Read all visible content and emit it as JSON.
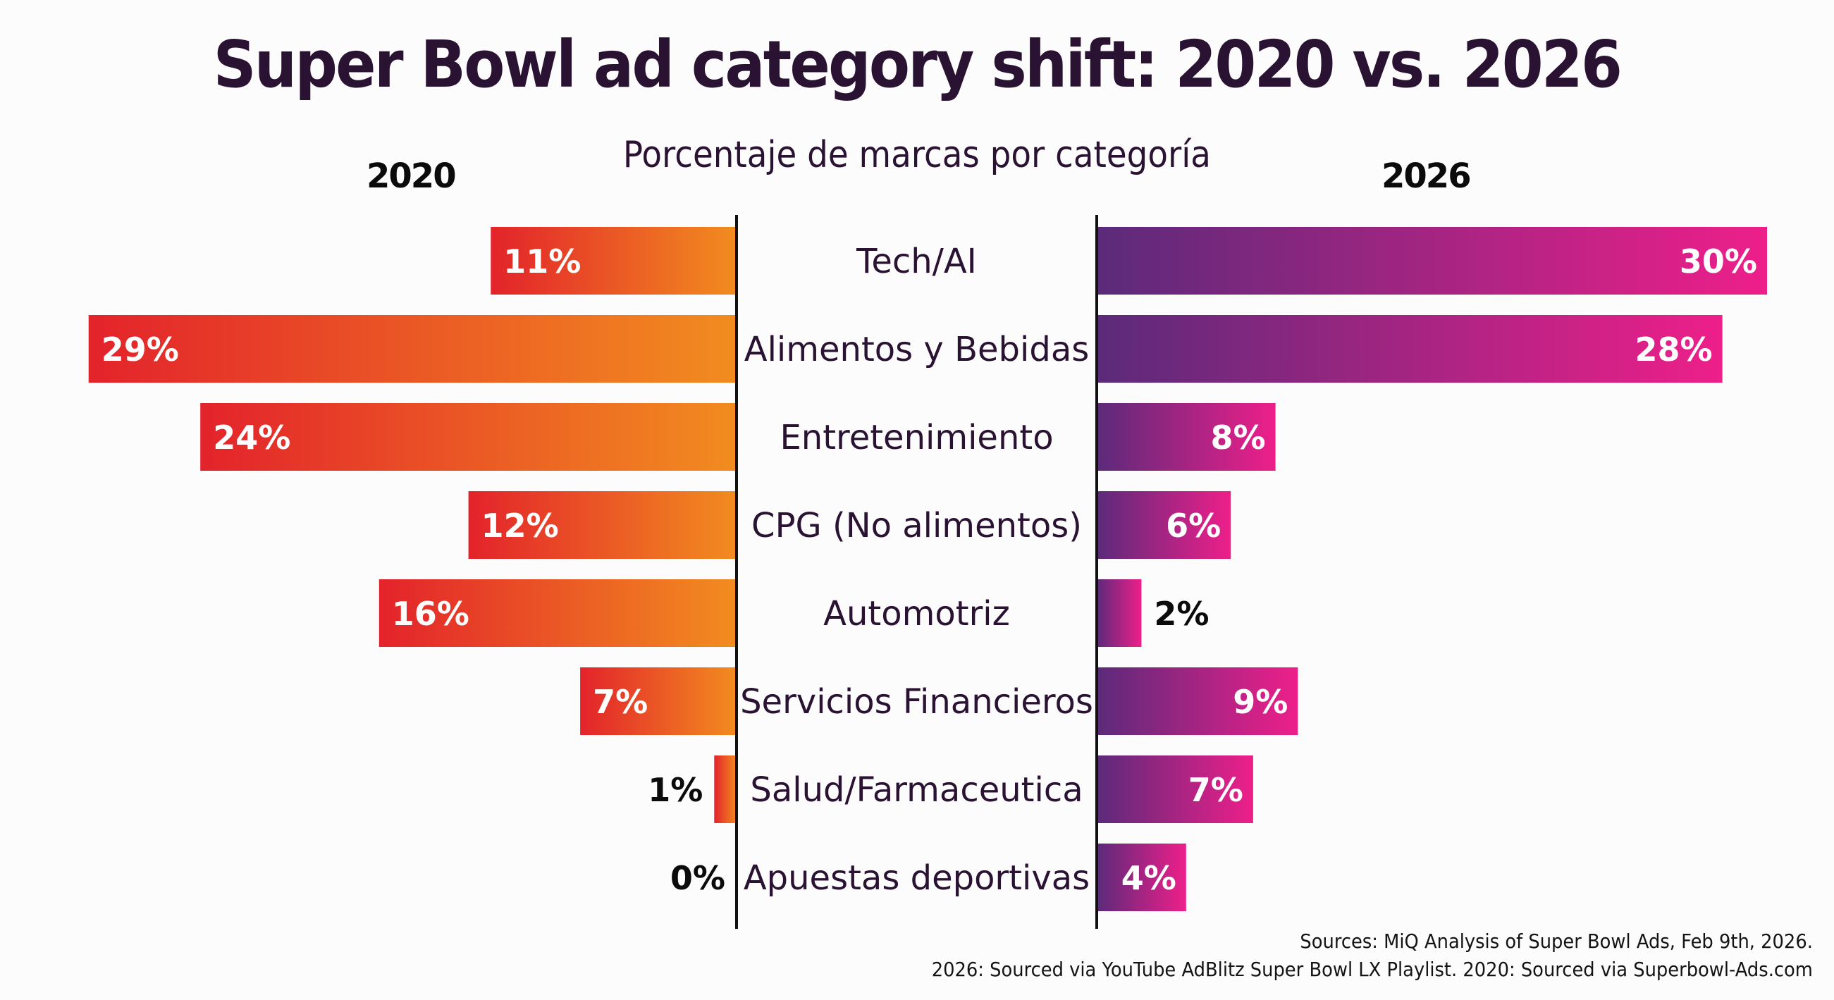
{
  "chart_data": {
    "type": "bar",
    "orientation": "horizontal-diverging",
    "title": "Super Bowl ad category shift: 2020 vs. 2026",
    "subtitle": "Porcentaje de marcas por categoría",
    "unit": "%",
    "categories": [
      "Tech/AI",
      "Alimentos y Bebidas",
      "Entretenimiento",
      "CPG (No alimentos)",
      "Automotriz",
      "Servicios Financieros",
      "Salud/Farmaceutica",
      "Apuestas deportivas"
    ],
    "series": [
      {
        "name": "2020",
        "side": "left",
        "values": [
          11,
          29,
          24,
          12,
          16,
          7,
          1,
          0
        ],
        "labels": [
          "11%",
          "29%",
          "24%",
          "12%",
          "16%",
          "7%",
          "1%",
          "0%"
        ],
        "gradient": [
          "#e3232b",
          "#f28c1f"
        ]
      },
      {
        "name": "2026",
        "side": "right",
        "values": [
          30,
          28,
          8,
          6,
          2,
          9,
          7,
          4
        ],
        "labels": [
          "30%",
          "28%",
          "8%",
          "6%",
          "2%",
          "9%",
          "7%",
          "4%"
        ],
        "gradient": [
          "#5b2a7a",
          "#ee1f8a"
        ]
      }
    ],
    "xlim": [
      0,
      30
    ],
    "grid": false,
    "legend": "year labels above each side (2020 left, 2026 right)"
  },
  "header": {
    "title": "Super Bowl ad category shift: 2020 vs. 2026",
    "subtitle": "Porcentaje de marcas por categoría",
    "left_year": "2020",
    "right_year": "2026"
  },
  "footer": {
    "sources_line1": "Sources: MiQ Analysis of Super Bowl Ads, Feb 9th, 2026.",
    "sources_line2": "2026: Sourced via YouTube AdBlitz Super Bowl LX Playlist. 2020: Sourced via Superbowl-Ads.com"
  },
  "colors": {
    "title": "#2a1233",
    "axis": "#111111",
    "left_start": "#e3232b",
    "left_end": "#f28c1f",
    "right_start": "#5b2a7a",
    "right_end": "#ee1f8a"
  }
}
